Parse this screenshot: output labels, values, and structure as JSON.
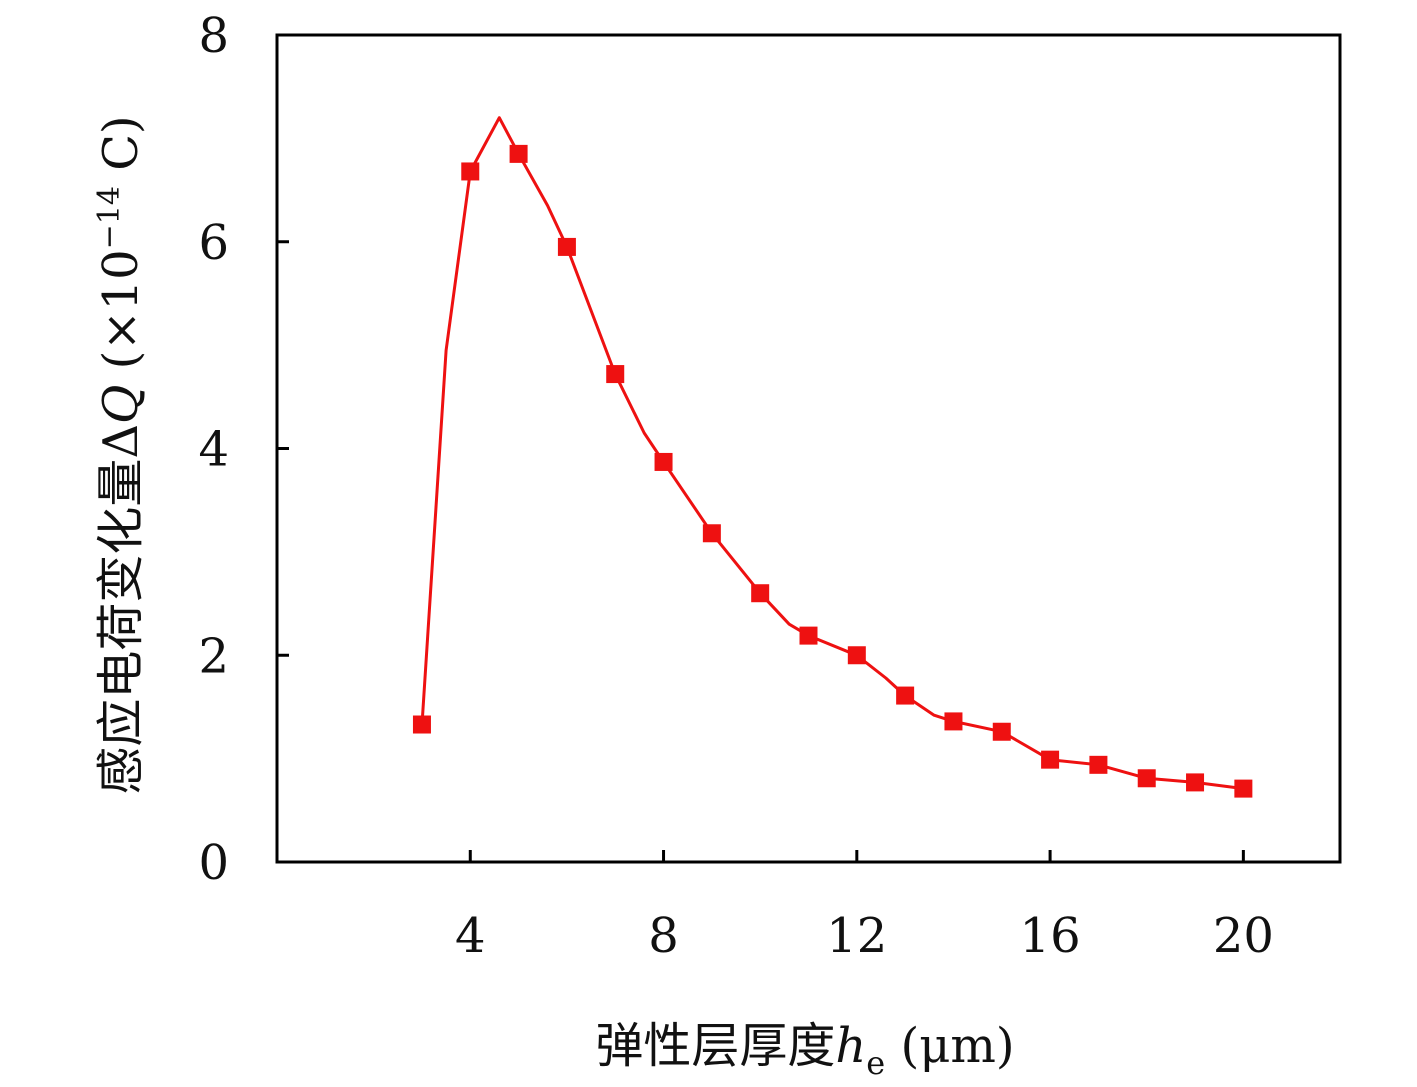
{
  "chart_data": {
    "type": "line",
    "xlabel": {
      "main": "弹性层厚度",
      "var": "h",
      "sub": "e",
      "unit": " (μm)"
    },
    "ylabel": {
      "main": "感应电荷变化量Δ",
      "var": "Q",
      "unit_open": " (×10",
      "unit_exp": "−14",
      "unit_close": " C)"
    },
    "xlim": [
      0.0,
      22.0
    ],
    "ylim": [
      0,
      8
    ],
    "x_ticks": [
      4,
      8,
      12,
      16,
      20
    ],
    "y_ticks": [
      0,
      2,
      4,
      6,
      8
    ],
    "grid": false,
    "series": [
      {
        "color": "#ee1111",
        "line_x": [
          3,
          3.5,
          4,
          4.6,
          5,
          5.6,
          6,
          7,
          7.6,
          8,
          9,
          10,
          10.6,
          11,
          12,
          12.6,
          13,
          13.6,
          14,
          15,
          16,
          17,
          18,
          19,
          20
        ],
        "line_y": [
          1.33,
          4.95,
          6.68,
          7.2,
          6.85,
          6.35,
          5.95,
          4.72,
          4.15,
          3.87,
          3.18,
          2.6,
          2.3,
          2.19,
          2.0,
          1.78,
          1.61,
          1.42,
          1.36,
          1.26,
          0.99,
          0.94,
          0.81,
          0.77,
          0.71
        ],
        "marker_x": [
          3,
          4,
          5,
          6,
          7,
          8,
          9,
          10,
          11,
          12,
          13,
          14,
          15,
          16,
          17,
          18,
          19,
          20
        ],
        "marker_y": [
          1.33,
          6.68,
          6.85,
          5.95,
          4.72,
          3.87,
          3.18,
          2.6,
          2.19,
          2.0,
          1.61,
          1.36,
          1.26,
          0.99,
          0.94,
          0.81,
          0.77,
          0.71
        ]
      }
    ]
  }
}
